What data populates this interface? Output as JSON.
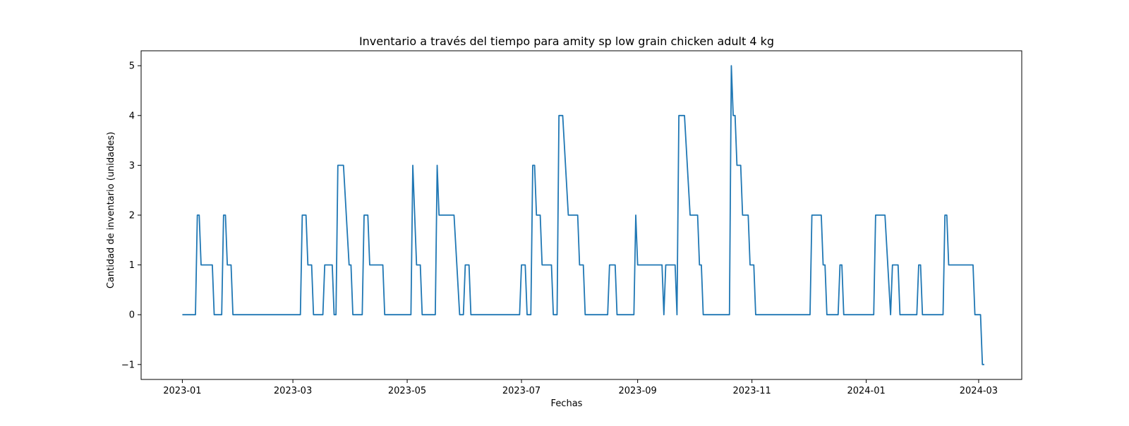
{
  "chart_data": {
    "type": "line",
    "title": "Inventario a través del tiempo para amity sp low grain chicken adult 4 kg",
    "xlabel": "Fechas",
    "ylabel": "Cantidad de inventario (unidades)",
    "x_tick_labels": [
      "2023-01",
      "2023-03",
      "2023-05",
      "2023-07",
      "2023-09",
      "2023-11",
      "2024-01",
      "2024-03"
    ],
    "y_tick_labels": [
      "−1",
      "0",
      "1",
      "2",
      "3",
      "4",
      "5"
    ],
    "y_ticks": [
      -1,
      0,
      1,
      2,
      3,
      4,
      5
    ],
    "ylim": [
      -1.3,
      5.3
    ],
    "xlim": [
      "2022-12-10",
      "2024-03-24"
    ],
    "grid": false,
    "line_color": "#1f77b4",
    "series": [
      {
        "points": [
          [
            "2023-01-01",
            0
          ],
          [
            "2023-01-08",
            0
          ],
          [
            "2023-01-09",
            2
          ],
          [
            "2023-01-10",
            2
          ],
          [
            "2023-01-11",
            1
          ],
          [
            "2023-01-17",
            1
          ],
          [
            "2023-01-18",
            0
          ],
          [
            "2023-01-22",
            0
          ],
          [
            "2023-01-23",
            2
          ],
          [
            "2023-01-24",
            2
          ],
          [
            "2023-01-25",
            1
          ],
          [
            "2023-01-27",
            1
          ],
          [
            "2023-01-28",
            0
          ],
          [
            "2023-03-05",
            0
          ],
          [
            "2023-03-06",
            2
          ],
          [
            "2023-03-08",
            2
          ],
          [
            "2023-03-09",
            1
          ],
          [
            "2023-03-11",
            1
          ],
          [
            "2023-03-12",
            0
          ],
          [
            "2023-03-17",
            0
          ],
          [
            "2023-03-18",
            1
          ],
          [
            "2023-03-22",
            1
          ],
          [
            "2023-03-23",
            0
          ],
          [
            "2023-03-24",
            0
          ],
          [
            "2023-03-25",
            3
          ],
          [
            "2023-03-28",
            3
          ],
          [
            "2023-03-31",
            1
          ],
          [
            "2023-04-01",
            1
          ],
          [
            "2023-04-02",
            0
          ],
          [
            "2023-04-07",
            0
          ],
          [
            "2023-04-08",
            2
          ],
          [
            "2023-04-10",
            2
          ],
          [
            "2023-04-11",
            1
          ],
          [
            "2023-04-18",
            1
          ],
          [
            "2023-04-19",
            0
          ],
          [
            "2023-05-03",
            0
          ],
          [
            "2023-05-04",
            3
          ],
          [
            "2023-05-06",
            1
          ],
          [
            "2023-05-08",
            1
          ],
          [
            "2023-05-09",
            0
          ],
          [
            "2023-05-16",
            0
          ],
          [
            "2023-05-17",
            3
          ],
          [
            "2023-05-18",
            2
          ],
          [
            "2023-05-26",
            2
          ],
          [
            "2023-05-29",
            0
          ],
          [
            "2023-05-31",
            0
          ],
          [
            "2023-06-01",
            1
          ],
          [
            "2023-06-03",
            1
          ],
          [
            "2023-06-04",
            0
          ],
          [
            "2023-06-30",
            0
          ],
          [
            "2023-07-01",
            1
          ],
          [
            "2023-07-03",
            1
          ],
          [
            "2023-07-04",
            0
          ],
          [
            "2023-07-06",
            0
          ],
          [
            "2023-07-07",
            3
          ],
          [
            "2023-07-08",
            3
          ],
          [
            "2023-07-09",
            2
          ],
          [
            "2023-07-11",
            2
          ],
          [
            "2023-07-12",
            1
          ],
          [
            "2023-07-17",
            1
          ],
          [
            "2023-07-18",
            0
          ],
          [
            "2023-07-20",
            0
          ],
          [
            "2023-07-21",
            4
          ],
          [
            "2023-07-23",
            4
          ],
          [
            "2023-07-26",
            2
          ],
          [
            "2023-07-31",
            2
          ],
          [
            "2023-08-01",
            1
          ],
          [
            "2023-08-03",
            1
          ],
          [
            "2023-08-04",
            0
          ],
          [
            "2023-08-16",
            0
          ],
          [
            "2023-08-17",
            1
          ],
          [
            "2023-08-20",
            1
          ],
          [
            "2023-08-21",
            0
          ],
          [
            "2023-08-30",
            0
          ],
          [
            "2023-08-31",
            2
          ],
          [
            "2023-09-01",
            1
          ],
          [
            "2023-09-14",
            1
          ],
          [
            "2023-09-15",
            0
          ],
          [
            "2023-09-16",
            1
          ],
          [
            "2023-09-21",
            1
          ],
          [
            "2023-09-22",
            0
          ],
          [
            "2023-09-23",
            4
          ],
          [
            "2023-09-26",
            4
          ],
          [
            "2023-09-29",
            2
          ],
          [
            "2023-10-03",
            2
          ],
          [
            "2023-10-04",
            1
          ],
          [
            "2023-10-05",
            1
          ],
          [
            "2023-10-06",
            0
          ],
          [
            "2023-10-20",
            0
          ],
          [
            "2023-10-21",
            5
          ],
          [
            "2023-10-22",
            4
          ],
          [
            "2023-10-23",
            4
          ],
          [
            "2023-10-24",
            3
          ],
          [
            "2023-10-26",
            3
          ],
          [
            "2023-10-27",
            2
          ],
          [
            "2023-10-30",
            2
          ],
          [
            "2023-10-31",
            1
          ],
          [
            "2023-11-02",
            1
          ],
          [
            "2023-11-03",
            0
          ],
          [
            "2023-12-02",
            0
          ],
          [
            "2023-12-03",
            2
          ],
          [
            "2023-12-08",
            2
          ],
          [
            "2023-12-09",
            1
          ],
          [
            "2023-12-10",
            1
          ],
          [
            "2023-12-11",
            0
          ],
          [
            "2023-12-17",
            0
          ],
          [
            "2023-12-18",
            1
          ],
          [
            "2023-12-19",
            1
          ],
          [
            "2023-12-20",
            0
          ],
          [
            "2024-01-05",
            0
          ],
          [
            "2024-01-06",
            2
          ],
          [
            "2024-01-11",
            2
          ],
          [
            "2024-01-14",
            0
          ],
          [
            "2024-01-15",
            1
          ],
          [
            "2024-01-18",
            1
          ],
          [
            "2024-01-19",
            0
          ],
          [
            "2024-01-28",
            0
          ],
          [
            "2024-01-29",
            1
          ],
          [
            "2024-01-30",
            1
          ],
          [
            "2024-01-31",
            0
          ],
          [
            "2024-02-11",
            0
          ],
          [
            "2024-02-12",
            2
          ],
          [
            "2024-02-13",
            2
          ],
          [
            "2024-02-14",
            1
          ],
          [
            "2024-02-27",
            1
          ],
          [
            "2024-02-28",
            0
          ],
          [
            "2024-03-02",
            0
          ],
          [
            "2024-03-03",
            -1
          ],
          [
            "2024-03-04",
            -1
          ]
        ]
      }
    ]
  }
}
